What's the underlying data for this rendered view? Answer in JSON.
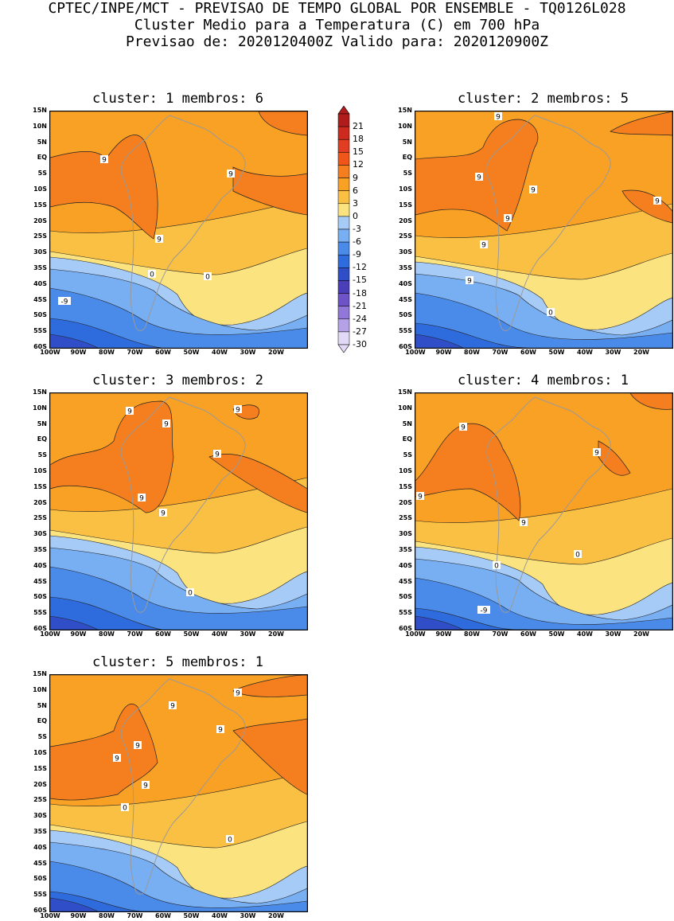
{
  "header": {
    "line1": "CPTEC/INPE/MCT - PREVISAO DE TEMPO GLOBAL POR ENSEMBLE - TQ0126L028",
    "line2": "Cluster Medio para a Temperatura (C) em 700 hPa",
    "line3": "Previsao de: 2020120400Z   Valido para: 2020120900Z"
  },
  "axes": {
    "lat_labels": [
      "15N",
      "10N",
      "5N",
      "EQ",
      "5S",
      "10S",
      "15S",
      "20S",
      "25S",
      "30S",
      "35S",
      "40S",
      "45S",
      "50S",
      "55S",
      "60S"
    ],
    "lon_labels": [
      "100W",
      "90W",
      "80W",
      "70W",
      "60W",
      "50W",
      "40W",
      "30W",
      "20W"
    ]
  },
  "colorbar": {
    "labels": [
      "21",
      "18",
      "15",
      "12",
      "9",
      "6",
      "3",
      "0",
      "-3",
      "-6",
      "-9",
      "-12",
      "-15",
      "-18",
      "-21",
      "-24",
      "-27",
      "-30"
    ],
    "colors": [
      "#b01c1c",
      "#cc2a1f",
      "#e13d22",
      "#f0561a",
      "#f57f1e",
      "#f8a125",
      "#f9c043",
      "#fbe37f",
      "#a6cbf7",
      "#78aef2",
      "#4a8bea",
      "#2e6bdc",
      "#2f4ec7",
      "#4a3fb8",
      "#6d52c8",
      "#9178d8",
      "#b5a2e6",
      "#e2d9f6"
    ]
  },
  "panels": [
    {
      "title": "cluster: 1   membros: 6",
      "contour_labels": [
        "9",
        "9",
        "9",
        "0",
        "0",
        "-9"
      ]
    },
    {
      "title": "cluster: 2   membros: 5",
      "contour_labels": [
        "9",
        "9",
        "9",
        "9",
        "9",
        "9",
        "9",
        "0"
      ]
    },
    {
      "title": "cluster: 3   membros: 2",
      "contour_labels": [
        "9",
        "9",
        "9",
        "9",
        "9",
        "9",
        "0"
      ]
    },
    {
      "title": "cluster: 4   membros: 1",
      "contour_labels": [
        "9",
        "9",
        "9",
        "9",
        "0",
        "0",
        "-9"
      ]
    },
    {
      "title": "cluster: 5   membros: 1",
      "contour_labels": [
        "9",
        "9",
        "9",
        "9",
        "9",
        "9",
        "0",
        "0"
      ]
    }
  ]
}
